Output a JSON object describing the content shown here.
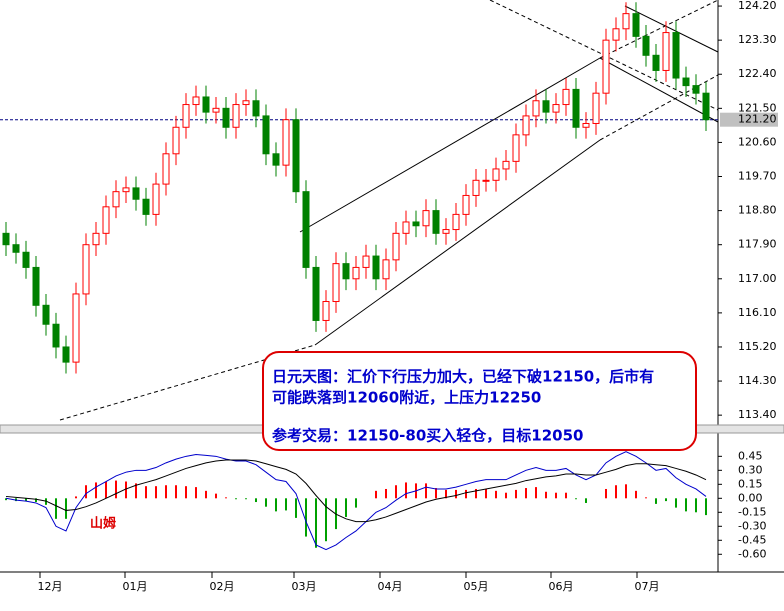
{
  "chart_data": [
    {
      "type": "candlestick",
      "open": [
        118.2,
        117.9,
        117.7,
        117.3,
        116.3,
        115.8,
        115.2,
        114.8,
        116.6,
        117.9,
        118.2,
        118.9,
        119.3,
        119.4,
        119.1,
        118.7,
        119.5,
        120.3,
        121.0,
        121.6,
        121.8,
        121.4,
        121.5,
        121.0,
        121.6,
        121.7,
        121.3,
        120.3,
        120.0,
        121.2,
        119.3,
        117.3,
        115.9,
        116.4,
        117.4,
        117.0,
        117.3,
        117.6,
        117.0,
        117.5,
        118.2,
        118.5,
        118.4,
        118.8,
        118.2,
        118.3,
        118.7,
        119.2,
        119.6,
        119.6,
        119.9,
        120.1,
        120.8,
        121.3,
        121.7,
        121.4,
        121.6,
        122.0,
        121.0,
        121.1,
        121.9,
        123.3,
        123.6,
        124.0,
        123.4,
        122.9,
        122.5,
        123.5,
        122.3,
        122.1,
        121.9
      ],
      "high": [
        118.5,
        118.2,
        118.0,
        117.6,
        116.6,
        116.1,
        115.5,
        116.9,
        118.2,
        118.5,
        119.2,
        119.6,
        119.7,
        119.7,
        119.4,
        119.8,
        120.6,
        121.3,
        121.9,
        122.1,
        122.1,
        121.8,
        121.8,
        121.9,
        122.0,
        122.0,
        121.6,
        120.6,
        121.5,
        121.5,
        119.6,
        117.6,
        116.7,
        117.7,
        117.7,
        117.6,
        117.9,
        117.9,
        117.8,
        118.5,
        118.8,
        118.8,
        119.1,
        119.1,
        118.6,
        119.0,
        119.5,
        119.9,
        119.9,
        120.2,
        120.4,
        121.1,
        121.6,
        122.0,
        122.0,
        121.9,
        122.3,
        122.3,
        121.4,
        122.2,
        123.6,
        123.9,
        124.3,
        124.3,
        123.7,
        123.2,
        123.8,
        123.8,
        122.6,
        122.4,
        122.2
      ],
      "low": [
        117.6,
        117.4,
        117.0,
        116.0,
        115.5,
        114.9,
        114.5,
        114.5,
        116.3,
        117.6,
        117.9,
        118.6,
        119.0,
        118.8,
        118.4,
        118.4,
        119.2,
        120.0,
        120.7,
        121.3,
        121.1,
        121.1,
        120.7,
        120.7,
        121.3,
        121.0,
        120.0,
        119.7,
        119.7,
        119.0,
        117.0,
        115.6,
        115.6,
        116.1,
        116.7,
        116.7,
        117.0,
        116.7,
        116.7,
        117.2,
        117.9,
        118.1,
        118.1,
        117.9,
        117.9,
        118.0,
        118.4,
        118.9,
        119.3,
        119.3,
        119.6,
        119.8,
        120.5,
        121.0,
        121.1,
        121.1,
        121.3,
        120.7,
        120.7,
        120.8,
        121.6,
        123.0,
        123.3,
        123.1,
        122.6,
        122.2,
        122.2,
        122.0,
        121.8,
        121.6,
        120.9
      ],
      "close": [
        117.9,
        117.7,
        117.3,
        116.3,
        115.8,
        115.2,
        114.8,
        116.6,
        117.9,
        118.2,
        118.9,
        119.3,
        119.4,
        119.1,
        118.7,
        119.5,
        120.3,
        121.0,
        121.6,
        121.8,
        121.4,
        121.5,
        121.0,
        121.6,
        121.7,
        121.3,
        120.3,
        120.0,
        121.2,
        119.3,
        117.3,
        115.9,
        116.4,
        117.4,
        117.0,
        117.3,
        117.6,
        117.0,
        117.5,
        118.2,
        118.5,
        118.4,
        118.8,
        118.2,
        118.3,
        118.7,
        119.2,
        119.6,
        119.6,
        119.9,
        120.1,
        120.8,
        121.3,
        121.7,
        121.4,
        121.6,
        122.0,
        121.0,
        121.1,
        121.9,
        123.3,
        123.6,
        124.0,
        123.4,
        122.9,
        122.5,
        123.5,
        122.3,
        122.1,
        121.9,
        121.2
      ],
      "up_color": "#ff0000",
      "down_color": "#008000",
      "xlim": [
        -0.6,
        71.2
      ],
      "xticks": [
        {
          "value": 4.4,
          "label": "12月"
        },
        {
          "value": 12.9,
          "label": "01月"
        },
        {
          "value": 21.6,
          "label": "02月"
        },
        {
          "value": 29.8,
          "label": "03月"
        },
        {
          "value": 38.4,
          "label": "04月"
        },
        {
          "value": 47.0,
          "label": "05月"
        },
        {
          "value": 55.5,
          "label": "06月"
        },
        {
          "value": 64.1,
          "label": "07月"
        }
      ],
      "ylim": [
        113.14,
        124.36
      ],
      "yticks": [
        {
          "value": 124.2,
          "label": "124.20"
        },
        {
          "value": 123.3,
          "label": "123.30"
        },
        {
          "value": 122.4,
          "label": "122.40"
        },
        {
          "value": 121.5,
          "label": "121.50"
        },
        {
          "value": 120.6,
          "label": "120.60"
        },
        {
          "value": 119.7,
          "label": "119.70"
        },
        {
          "value": 118.8,
          "label": "118.80"
        },
        {
          "value": 117.9,
          "label": "117.90"
        },
        {
          "value": 117.0,
          "label": "117.00"
        },
        {
          "value": 116.1,
          "label": "116.10"
        },
        {
          "value": 115.2,
          "label": "115.20"
        },
        {
          "value": 114.3,
          "label": "114.30"
        },
        {
          "value": 113.4,
          "label": "113.40"
        }
      ],
      "last_price": {
        "value": 121.2,
        "label": "121.20"
      },
      "annotation": [
        "日元天图：汇价下行压力加大，已经下破12150，后市有",
        "可能跌落到12060附近，上压力12250",
        "参考交易：12150-80买入轻仓，目标12050"
      ]
    },
    {
      "type": "macd",
      "series": [
        {
          "color": "#0000cc",
          "values": [
            0.0,
            -0.02,
            -0.03,
            -0.05,
            -0.1,
            -0.3,
            -0.35,
            -0.1,
            0.05,
            0.12,
            0.18,
            0.24,
            0.28,
            0.3,
            0.3,
            0.33,
            0.38,
            0.42,
            0.45,
            0.47,
            0.46,
            0.45,
            0.42,
            0.4,
            0.4,
            0.36,
            0.28,
            0.2,
            0.18,
            0.05,
            -0.25,
            -0.5,
            -0.55,
            -0.5,
            -0.42,
            -0.35,
            -0.25,
            -0.15,
            -0.1,
            -0.02,
            0.05,
            0.08,
            0.12,
            0.1,
            0.1,
            0.12,
            0.15,
            0.18,
            0.2,
            0.2,
            0.2,
            0.25,
            0.3,
            0.33,
            0.3,
            0.3,
            0.32,
            0.25,
            0.2,
            0.25,
            0.38,
            0.45,
            0.5,
            0.45,
            0.38,
            0.3,
            0.32,
            0.22,
            0.15,
            0.1,
            0.02
          ]
        },
        {
          "color": "#000000",
          "values": [
            0.02,
            0.01,
            0.0,
            -0.01,
            -0.03,
            -0.08,
            -0.13,
            -0.12,
            -0.09,
            -0.05,
            0.0,
            0.05,
            0.1,
            0.14,
            0.17,
            0.2,
            0.24,
            0.28,
            0.32,
            0.35,
            0.38,
            0.4,
            0.41,
            0.41,
            0.41,
            0.4,
            0.37,
            0.34,
            0.31,
            0.26,
            0.16,
            0.03,
            -0.09,
            -0.17,
            -0.22,
            -0.25,
            -0.25,
            -0.23,
            -0.2,
            -0.16,
            -0.12,
            -0.08,
            -0.04,
            -0.01,
            0.01,
            0.03,
            0.06,
            0.08,
            0.1,
            0.12,
            0.14,
            0.16,
            0.19,
            0.21,
            0.23,
            0.24,
            0.26,
            0.26,
            0.25,
            0.25,
            0.28,
            0.31,
            0.35,
            0.37,
            0.37,
            0.36,
            0.35,
            0.32,
            0.29,
            0.25,
            0.2
          ]
        }
      ],
      "histogram": [
        -0.02,
        -0.03,
        -0.03,
        -0.04,
        -0.07,
        -0.22,
        -0.22,
        0.02,
        0.14,
        0.17,
        0.18,
        0.19,
        0.18,
        0.16,
        0.13,
        0.13,
        0.14,
        0.14,
        0.13,
        0.12,
        0.08,
        0.05,
        0.01,
        -0.01,
        -0.01,
        -0.04,
        -0.09,
        -0.14,
        -0.13,
        -0.21,
        -0.41,
        -0.53,
        -0.46,
        -0.33,
        -0.2,
        -0.1,
        0.0,
        0.08,
        0.1,
        0.14,
        0.17,
        0.16,
        0.16,
        0.11,
        0.09,
        0.09,
        0.09,
        0.1,
        0.1,
        0.08,
        0.06,
        0.09,
        0.11,
        0.12,
        0.07,
        0.06,
        0.06,
        -0.01,
        -0.05,
        0.0,
        0.1,
        0.14,
        0.15,
        0.08,
        0.01,
        -0.06,
        -0.03,
        -0.1,
        -0.14,
        -0.15,
        -0.18
      ],
      "pos_color": "#ff0000",
      "neg_color": "#00a000",
      "ylim": [
        -0.79,
        0.7
      ],
      "yticks": [
        0.45,
        {
          "value": 0.3,
          "label": "0.30"
        },
        0.15,
        {
          "value": 0,
          "label": "0.00"
        },
        -0.15,
        {
          "value": -0.3,
          "label": "-0.30"
        },
        -0.45,
        {
          "value": -0.6,
          "label": "-0.60"
        }
      ],
      "signature": "山姆"
    }
  ]
}
